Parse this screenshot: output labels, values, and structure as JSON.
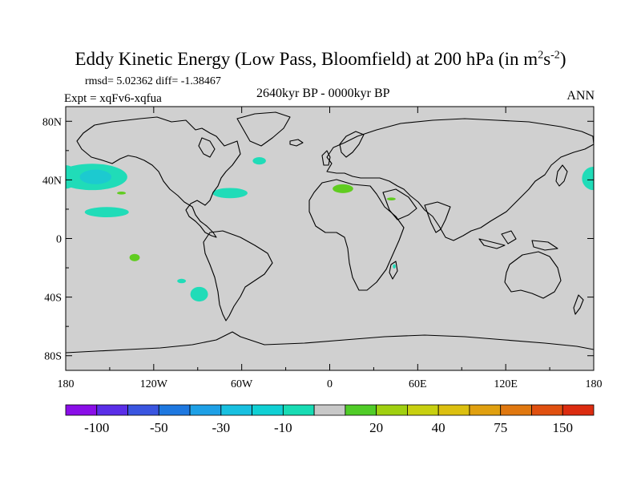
{
  "title": {
    "main": "Eddy Kinetic Energy (Low Pass, Bloomfield) at 200 hPa (in m",
    "sup1": "2",
    "mid": "s",
    "sup2": "-2",
    "end": ")"
  },
  "stats": "rmsd= 5.02362 diff= -1.38467",
  "experiment": "Expt = xqFv6-xqfua",
  "period": "2640kyr BP - 0000kyr BP",
  "season": "ANN",
  "axes": {
    "y_ticks": [
      {
        "value": 80,
        "label": "80N"
      },
      {
        "value": 40,
        "label": "40N"
      },
      {
        "value": 0,
        "label": "0"
      },
      {
        "value": -40,
        "label": "40S"
      },
      {
        "value": -80,
        "label": "80S"
      }
    ],
    "x_ticks": [
      {
        "value": -180,
        "label": "180"
      },
      {
        "value": -120,
        "label": "120W"
      },
      {
        "value": -60,
        "label": "60W"
      },
      {
        "value": 0,
        "label": "0"
      },
      {
        "value": 60,
        "label": "60E"
      },
      {
        "value": 120,
        "label": "120E"
      },
      {
        "value": 180,
        "label": "180"
      }
    ],
    "lon_range": [
      -180,
      180
    ],
    "lat_range": [
      -90,
      90
    ]
  },
  "colorbar": {
    "colors": [
      "#8a0ee8",
      "#5a2ee8",
      "#3a55e0",
      "#1e78e0",
      "#1ea0e6",
      "#18c0e0",
      "#10d0d4",
      "#18dcb4",
      "#c8c8c8",
      "#50cc28",
      "#a0d010",
      "#c8d010",
      "#dcc010",
      "#e0a010",
      "#e07810",
      "#e05010",
      "#dc2c10"
    ],
    "labels": [
      {
        "boundary": 1,
        "text": "-100"
      },
      {
        "boundary": 3,
        "text": "-50"
      },
      {
        "boundary": 5,
        "text": "-30"
      },
      {
        "boundary": 7,
        "text": "-10"
      },
      {
        "boundary": 10,
        "text": "20"
      },
      {
        "boundary": 12,
        "text": "40"
      },
      {
        "boundary": 14,
        "text": "75"
      },
      {
        "boundary": 16,
        "text": "150"
      }
    ]
  },
  "map_data": {
    "background_color": "#d0d0d0",
    "negative_color": "#20dcb8",
    "negative_core_color": "#1ccad0",
    "positive_color": "#60cc20",
    "anomaly_regions": [
      {
        "name": "north-pacific-east-negative",
        "sign": "negative",
        "center": [
          -162,
          42
        ],
        "extent": [
          24,
          9
        ]
      },
      {
        "name": "north-pacific-west-edge-negative",
        "sign": "negative",
        "center": [
          -180,
          42
        ],
        "extent": [
          8,
          8
        ]
      },
      {
        "name": "north-pacific-east-edge-negative",
        "sign": "negative",
        "center": [
          180,
          41
        ],
        "extent": [
          8,
          8
        ]
      },
      {
        "name": "subtropical-pacific-negative",
        "sign": "negative",
        "center": [
          -152,
          18
        ],
        "extent": [
          15,
          3.5
        ]
      },
      {
        "name": "north-atlantic-negative",
        "sign": "negative",
        "center": [
          -68,
          31
        ],
        "extent": [
          12,
          3.5
        ]
      },
      {
        "name": "labrador-sea-negative",
        "sign": "negative",
        "center": [
          -48,
          53
        ],
        "extent": [
          4.5,
          2.5
        ]
      },
      {
        "name": "south-pacific-negative",
        "sign": "negative",
        "center": [
          -89,
          -38
        ],
        "extent": [
          6,
          5
        ]
      },
      {
        "name": "south-pacific-small-negative",
        "sign": "negative",
        "center": [
          -101,
          -29
        ],
        "extent": [
          3,
          1.5
        ]
      },
      {
        "name": "madagascar-negative",
        "sign": "negative",
        "center": [
          44,
          -19
        ],
        "extent": [
          1,
          1.5
        ]
      },
      {
        "name": "mediterranean-positive",
        "sign": "positive",
        "center": [
          9,
          34
        ],
        "extent": [
          7,
          3
        ]
      },
      {
        "name": "middle-east-positive",
        "sign": "positive",
        "center": [
          42,
          27
        ],
        "extent": [
          3,
          1
        ]
      },
      {
        "name": "central-pacific-positive",
        "sign": "positive",
        "center": [
          -142,
          31
        ],
        "extent": [
          3,
          1
        ]
      },
      {
        "name": "tropical-pacific-positive",
        "sign": "positive",
        "center": [
          -133,
          -13
        ],
        "extent": [
          3.5,
          2.5
        ]
      }
    ]
  }
}
